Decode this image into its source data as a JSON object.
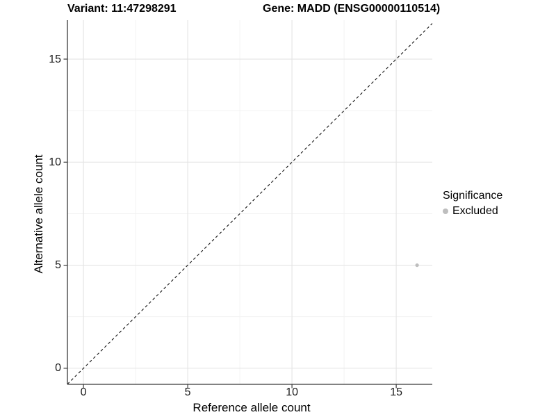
{
  "header": {
    "variant_title": "Variant: 11:47298291",
    "gene_title": "Gene: MADD (ENSG00000110514)"
  },
  "chart_data": {
    "type": "scatter",
    "title_left": "Variant: 11:47298291",
    "title_right": "Gene: MADD (ENSG00000110514)",
    "xlabel": "Reference allele count",
    "ylabel": "Alternative allele count",
    "x_ticks": [
      0,
      5,
      10,
      15
    ],
    "y_ticks": [
      0,
      5,
      10,
      15
    ],
    "x_minor_ticks": [
      2.5,
      7.5,
      12.5
    ],
    "y_minor_ticks": [
      2.5,
      7.5,
      12.5
    ],
    "x_domain": [
      -0.77,
      16.73
    ],
    "y_domain": [
      -0.78,
      16.89
    ],
    "grid": true,
    "legend_position": "right",
    "reference_line": {
      "type": "abline",
      "slope": 1,
      "intercept": 0,
      "style": "dashed",
      "color": "#111111"
    },
    "series": [
      {
        "name": "Excluded",
        "color": "#bebebe",
        "points": [
          {
            "x": 16,
            "y": 5
          }
        ]
      }
    ],
    "legend": {
      "title": "Significance",
      "items": [
        {
          "label": "Excluded",
          "color": "#bebebe"
        }
      ]
    },
    "style_colors": {
      "background": "#ffffff",
      "grid_major": "#e4e4e4",
      "grid_minor": "#f1f1f1",
      "axis_line": "#383838",
      "tick_text": "#1a1a1a"
    }
  }
}
